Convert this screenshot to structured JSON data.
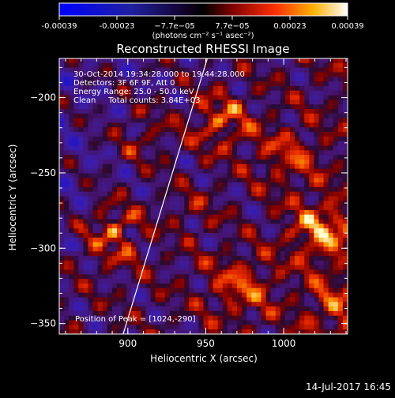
{
  "colorbar": {
    "ticks": [
      "-0.00039",
      "-0.00023",
      "−7.7e−05",
      "7.7e−05",
      "0.00023",
      "0.00039"
    ],
    "unit_label": "(photons cm⁻² s⁻¹ asec⁻²)",
    "range": [
      -0.00039,
      0.00039
    ],
    "colormap": "blue-black-red-yellow-white"
  },
  "chart_data": {
    "type": "heatmap",
    "title": "Reconstructed RHESSI Image",
    "xlabel": "Heliocentric X (arcsec)",
    "ylabel": "Heliocentric Y (arcsec)",
    "xlim": [
      856,
      1041
    ],
    "ylim": [
      -357,
      -174
    ],
    "xticks": [
      900,
      950,
      1000
    ],
    "yticks": [
      -200,
      -250,
      -300,
      -350
    ],
    "limb_line": {
      "x": [
        897,
        951
      ],
      "y": [
        -357,
        -174
      ],
      "color": "#ffffff"
    },
    "annotations": [
      "30-Oct-2014 19:34:28.000 to 19:44:28.000",
      "Detectors: 3F 6F 9F, Att 0",
      "Energy Range: 25.0 - 50.0 keV",
      "Clean     Total counts: 3.84E+03"
    ],
    "peak_label": "Position of Peak = [1024,-290]",
    "peak": {
      "x": 1024,
      "y": -290
    }
  },
  "footer": {
    "timestamp": "14-Jul-2017 16:45"
  }
}
